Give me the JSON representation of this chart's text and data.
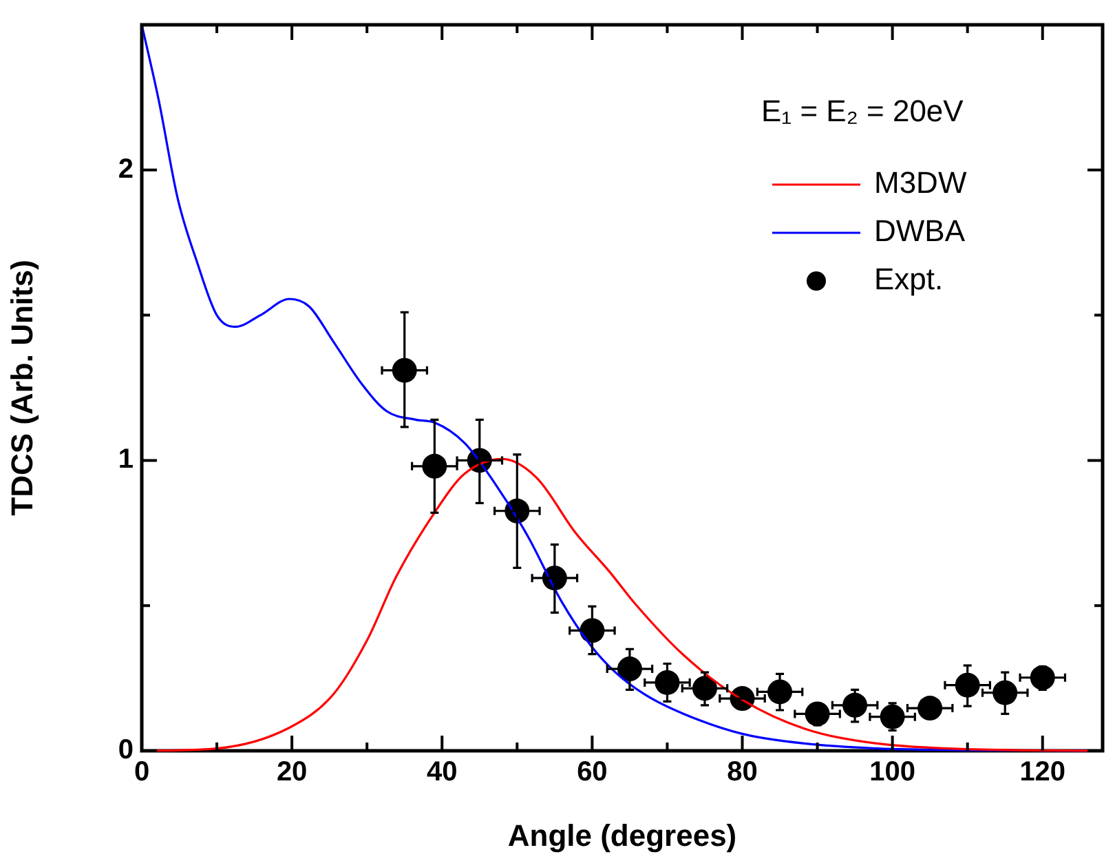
{
  "chart_data": {
    "type": "line",
    "xlabel": "Angle (degrees)",
    "ylabel": "TDCS (Arb. Units)",
    "legend_title": "E₁ = E₂ = 20eV",
    "legend": "top right",
    "grid": false,
    "xlim": [
      0,
      128
    ],
    "ylim": [
      0,
      2.5
    ],
    "xticks": [
      0,
      {
        "value": 10,
        "label": null
      },
      20,
      {
        "value": 30,
        "label": null
      },
      40,
      {
        "value": 50,
        "label": null
      },
      60,
      {
        "value": 70,
        "label": null
      },
      80,
      {
        "value": 90,
        "label": null
      },
      100,
      {
        "value": 110,
        "label": null
      },
      120
    ],
    "yticks": [
      0,
      {
        "value": 0.5,
        "label": null
      },
      1,
      {
        "value": 1.5,
        "label": null
      },
      2
    ],
    "series": [
      {
        "name": "M3DW",
        "color": "#ff0000",
        "marker": "none",
        "x": [
          0,
          10,
          19.7,
          25.5,
          30,
          33.9,
          39,
          43,
          48.1,
          52.6,
          57.8,
          62.3,
          65.7,
          72.2,
          79.9,
          88.3,
          98,
          111,
          128
        ],
        "values": [
          0,
          0.008,
          0.08,
          0.194,
          0.38,
          0.6,
          0.82,
          0.954,
          1.005,
          0.94,
          0.75,
          0.617,
          0.507,
          0.329,
          0.177,
          0.076,
          0.025,
          0.005,
          0
        ]
      },
      {
        "name": "DWBA",
        "color": "#0000ff",
        "marker": "none",
        "x": [
          0,
          2.26,
          4.8,
          7.4,
          10,
          12.5,
          15.8,
          19.7,
          22.3,
          25.5,
          29.4,
          32.6,
          36.5,
          39,
          43,
          46.8,
          51.4,
          55.9,
          59.8,
          63.1,
          67,
          72.2,
          79.9,
          88.3,
          98,
          111,
          128
        ],
        "values": [
          2.5,
          2.24,
          1.9,
          1.68,
          1.5,
          1.46,
          1.5,
          1.556,
          1.53,
          1.41,
          1.26,
          1.17,
          1.14,
          1.13,
          1.06,
          0.93,
          0.74,
          0.515,
          0.363,
          0.27,
          0.194,
          0.127,
          0.059,
          0.025,
          0.008,
          0.002,
          0
        ]
      },
      {
        "name": "Expt.",
        "color": "#000000",
        "type": "scatter",
        "marker": "circle",
        "x": [
          35,
          39,
          45,
          50,
          55,
          60,
          65,
          70,
          75,
          80,
          85,
          90,
          95,
          100,
          105,
          110,
          115,
          120
        ],
        "values": [
          1.31,
          0.98,
          1.0,
          0.826,
          0.595,
          0.414,
          0.282,
          0.235,
          0.215,
          0.18,
          0.203,
          0.127,
          0.157,
          0.117,
          0.147,
          0.226,
          0.2,
          0.252
        ],
        "errors": [
          [
            1.115,
            1.51
          ],
          [
            0.82,
            1.14
          ],
          [
            0.853,
            1.14
          ],
          [
            0.63,
            1.02
          ],
          [
            0.476,
            0.71
          ],
          [
            0.333,
            0.497
          ],
          [
            0.21,
            0.35
          ],
          [
            0.17,
            0.3
          ],
          [
            0.157,
            0.27
          ],
          null,
          [
            0.14,
            0.265
          ],
          [
            0.088,
            0.16
          ],
          [
            0.1,
            0.21
          ],
          [
            0.07,
            0.164
          ],
          null,
          [
            0.154,
            0.294
          ],
          [
            0.127,
            0.27
          ],
          [
            0.21,
            0.29
          ]
        ],
        "xerrors": [
          3,
          3,
          3,
          3,
          3,
          3,
          3,
          3,
          3,
          3,
          3,
          3,
          3,
          3,
          3,
          3,
          3,
          3
        ]
      }
    ]
  }
}
